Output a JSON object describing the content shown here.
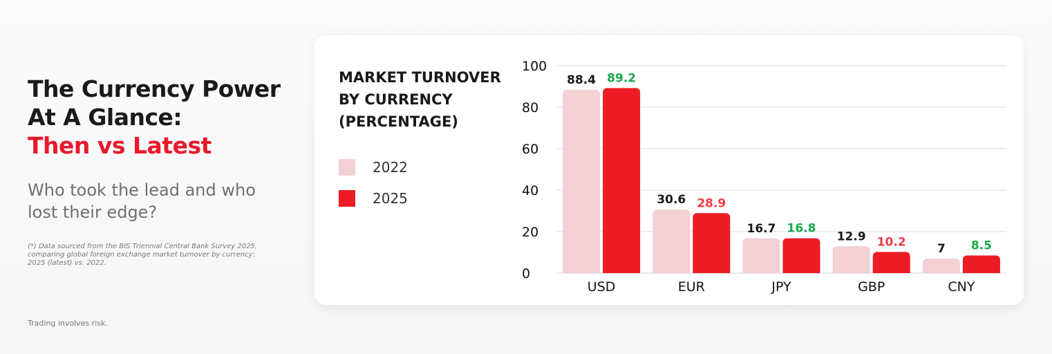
{
  "header": {
    "title_line1": "The Currency Power",
    "title_line2": "At A Glance:",
    "title_accent": "Then vs Latest",
    "subtitle": "Who took the lead and who lost their edge?",
    "note": "(*) Data sourced from the BIS Triennial Central Bank Survey 2025, comparing global foreign exchange market turnover by currency: 2025 (latest) vs. 2022."
  },
  "footer": {
    "risk": "Trading involves risk."
  },
  "colors": {
    "accent": "#e8192c",
    "series_2022": "#f3d0d4",
    "series_2025": "#ec1c24",
    "label_up": "#17a74a",
    "label_down": "#ef3b42",
    "label_neutral": "#1a1a1a"
  },
  "chart_data": {
    "type": "bar",
    "title": "MARKET TURNOVER BY CURRENCY (PERCENTAGE)",
    "categories": [
      "USD",
      "EUR",
      "JPY",
      "GBP",
      "CNY"
    ],
    "series": [
      {
        "name": "2022",
        "values": [
          88.4,
          30.6,
          16.7,
          12.9,
          7
        ]
      },
      {
        "name": "2025",
        "values": [
          89.2,
          28.9,
          16.8,
          10.2,
          8.5
        ]
      }
    ],
    "ylim": [
      0,
      100
    ],
    "yticks": [
      0,
      20,
      40,
      60,
      80,
      100
    ],
    "grid": true,
    "legend": "left"
  }
}
